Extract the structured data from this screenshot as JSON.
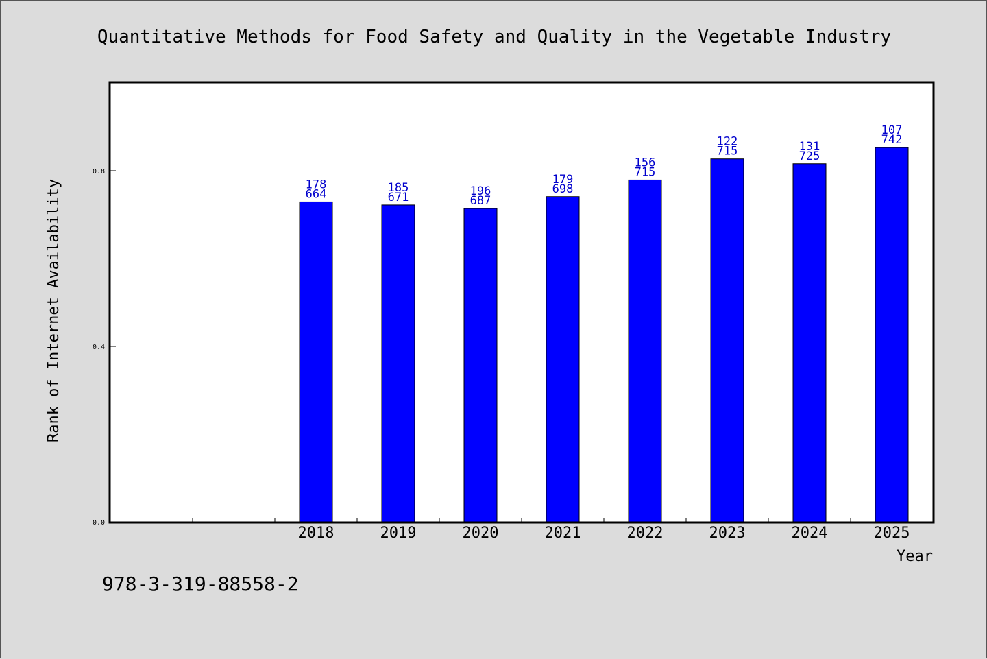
{
  "chart_data": {
    "type": "bar",
    "title": "Quantitative Methods for Food Safety and Quality in the Vegetable Industry",
    "xlabel": "Year",
    "ylabel": "Rank of Internet Availability",
    "categories": [
      "2018",
      "2019",
      "2020",
      "2021",
      "2022",
      "2023",
      "2024",
      "2025"
    ],
    "series": [
      {
        "values": [
          0.729,
          0.722,
          0.714,
          0.741,
          0.779,
          0.827,
          0.816,
          0.853
        ],
        "labels_top": [
          "178",
          "185",
          "196",
          "179",
          "156",
          "122",
          "131",
          "107"
        ],
        "labels_bottom": [
          "664",
          "671",
          "687",
          "698",
          "715",
          "715",
          "725",
          "742"
        ],
        "color": "#0000ff"
      }
    ],
    "y_ticks": [
      "0.0",
      "0.4",
      "0.8"
    ],
    "y_tick_values": [
      0.0,
      0.4,
      0.8
    ],
    "ylim": [
      0,
      0.8
    ],
    "x_slots": 10,
    "first_category_slot": 2,
    "grid": false,
    "bar_color": "#0000ff",
    "label_color": "#0000cc",
    "background": "#dcdcdc",
    "plot_background": "#ffffff"
  },
  "footer": {
    "isbn": "978-3-319-88558-2"
  }
}
